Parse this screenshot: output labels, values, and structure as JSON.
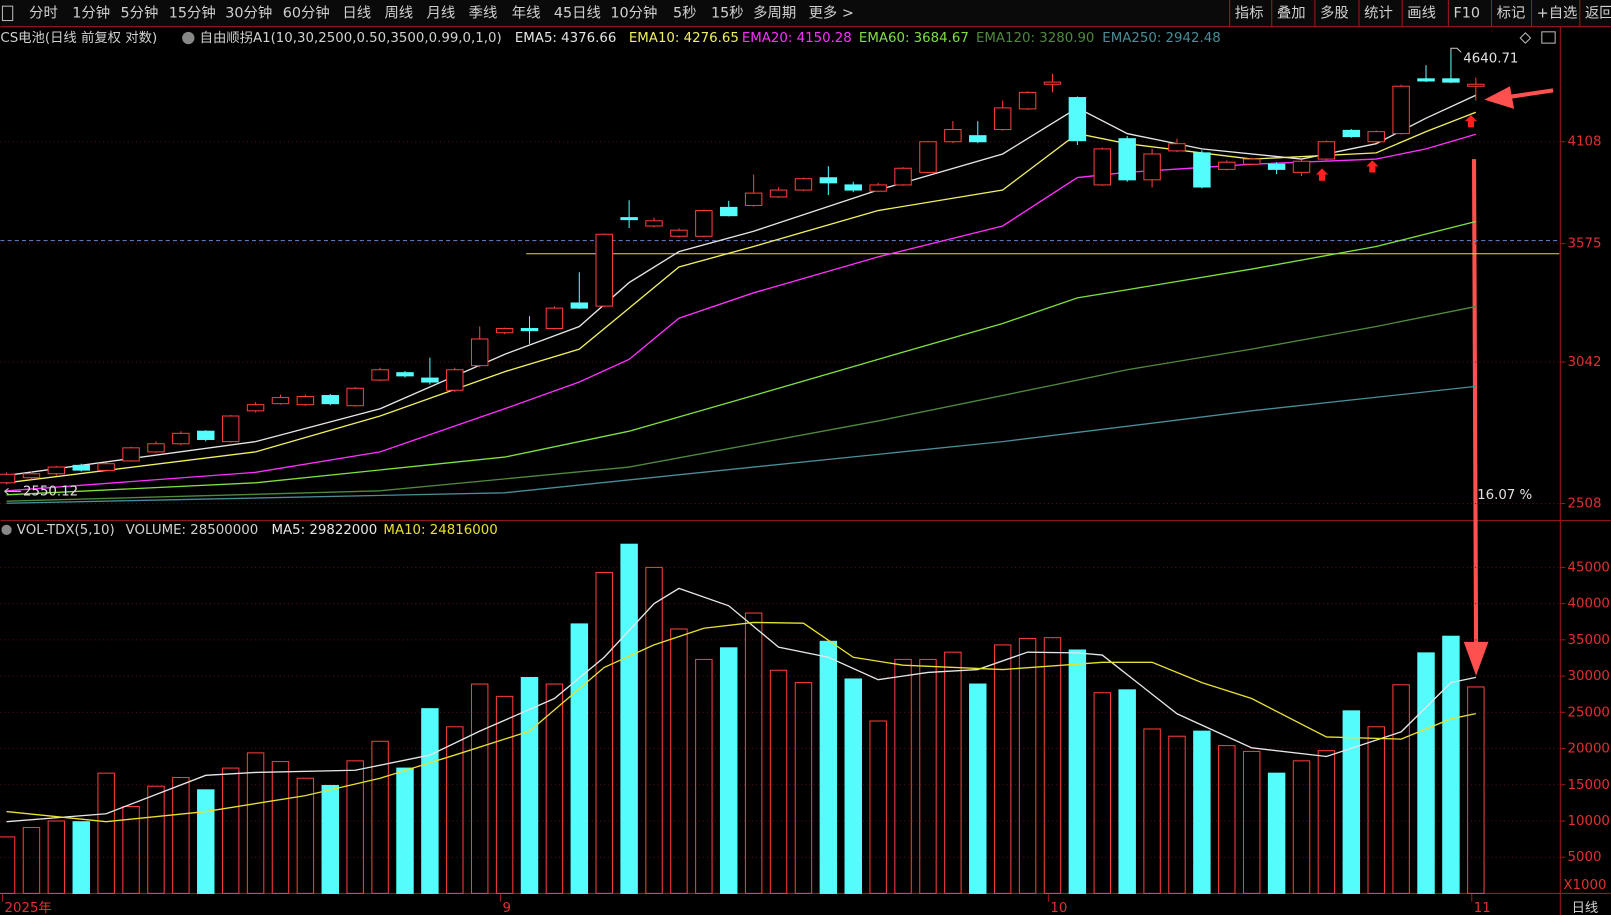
{
  "toolbar": {
    "tabs": [
      "分时",
      "1分钟",
      "5分钟",
      "15分钟",
      "30分钟",
      "60分钟",
      "日线",
      "周线",
      "月线",
      "季线",
      "年线",
      "45日线",
      "10分钟",
      "5秒",
      "15秒",
      "多周期",
      "更多 >"
    ],
    "active": 6,
    "tools": [
      "指标",
      "叠加",
      "多股",
      "统计",
      "画线",
      "F10",
      "标记",
      "+自选",
      "返回"
    ]
  },
  "chart_data": [
    {
      "type": "candlestick",
      "title": "CS电池(日线 前复权 对数)",
      "indicator": "自由顺拐A1(10,30,2500,0.50,3500,0.99,0,1,0)",
      "log_scale": true,
      "ylim": [
        2457,
        4673
      ],
      "yticks": [
        2508,
        3042,
        3575,
        4108
      ],
      "grid": true,
      "up_color": "#ff3c3c",
      "down_color": "#54fcfc",
      "open": [
        2580,
        2598,
        2612,
        2642,
        2624,
        2658,
        2691,
        2721,
        2768,
        2729,
        2846,
        2874,
        2870,
        2906,
        2866,
        2968,
        2998,
        2976,
        2927,
        3027,
        3166,
        3184,
        3184,
        3297,
        3283,
        3704,
        3662,
        3611,
        3611,
        3756,
        3766,
        3810,
        3846,
        3911,
        3873,
        3840,
        3873,
        3940,
        4108,
        4142,
        4177,
        4296,
        4443,
        4363,
        3873,
        4125,
        3900,
        4057,
        4046,
        3956,
        3984,
        3984,
        3940,
        4012,
        4172,
        4108,
        4154,
        4476,
        4476,
        4431
      ],
      "high": [
        2617,
        2620,
        2640,
        2648,
        2652,
        2710,
        2730,
        2768,
        2772,
        2830,
        2880,
        2910,
        2910,
        2912,
        2940,
        3018,
        3005,
        3060,
        3018,
        3193,
        3188,
        3238,
        3282,
        3438,
        3625,
        3793,
        3704,
        3650,
        3745,
        3790,
        3928,
        3860,
        3912,
        3973,
        3890,
        3884,
        3968,
        4112,
        4225,
        4225,
        4345,
        4400,
        4507,
        4370,
        4075,
        4140,
        4068,
        4125,
        4060,
        4005,
        4020,
        3995,
        4010,
        4115,
        4180,
        4172,
        4440,
        4560,
        4640.71,
        4483
      ],
      "low": [
        2575,
        2592,
        2605,
        2620,
        2620,
        2655,
        2688,
        2715,
        2730,
        2725,
        2840,
        2870,
        2865,
        2868,
        2862,
        2964,
        2978,
        2950,
        2920,
        3020,
        3160,
        3118,
        3180,
        3270,
        3278,
        3652,
        3655,
        3604,
        3606,
        3710,
        3760,
        3805,
        3840,
        3820,
        3835,
        3835,
        3868,
        3935,
        4100,
        4100,
        4170,
        4290,
        4394,
        4090,
        3868,
        3890,
        3860,
        4050,
        3855,
        3950,
        3980,
        3930,
        3920,
        4005,
        4130,
        4100,
        4148,
        4456,
        4450,
        4345
      ],
      "close": [
        2610,
        2612,
        2636,
        2625,
        2648,
        2706,
        2721,
        2760,
        2737,
        2826,
        2870,
        2898,
        2902,
        2874,
        2935,
        3010,
        2985,
        2960,
        3010,
        3139,
        3184,
        3175,
        3274,
        3274,
        3621,
        3694,
        3688,
        3641,
        3740,
        3714,
        3830,
        3846,
        3906,
        3884,
        3846,
        3873,
        3962,
        4108,
        4177,
        4108,
        4302,
        4394,
        4456,
        4114,
        4068,
        3900,
        4040,
        4097,
        3862,
        3995,
        4012,
        3956,
        4000,
        4108,
        4137,
        4165,
        4431,
        4463,
        4456,
        4443
      ],
      "high_marker_index": 58,
      "low_marker": 2550.12,
      "hline": 3526,
      "price_line": 3590,
      "annotation": "16.07 %",
      "x_labels": [
        {
          "index": 0,
          "label": "2025年"
        },
        {
          "index": 20,
          "label": "9"
        },
        {
          "index": 42,
          "label": "10"
        },
        {
          "index": 59,
          "label": "11"
        }
      ],
      "lines": [
        {
          "name": "EMA5: 4376.66",
          "color": "#e6e6e6",
          "x": [
            0,
            10,
            15,
            20,
            23,
            25,
            27,
            30,
            35,
            40,
            43,
            45,
            48,
            52,
            55,
            57,
            59
          ],
          "values": [
            2606,
            2729,
            2854,
            3074,
            3193,
            3390,
            3536,
            3636,
            3846,
            4040,
            4302,
            4154,
            4068,
            4012,
            4097,
            4242,
            4376.66
          ]
        },
        {
          "name": "EMA10: 4276.65",
          "color": "#f0f060",
          "x": [
            0,
            10,
            15,
            20,
            23,
            25,
            27,
            30,
            35,
            40,
            43,
            45,
            50,
            55,
            57,
            59
          ],
          "values": [
            2580,
            2691,
            2826,
            3002,
            3096,
            3274,
            3463,
            3561,
            3740,
            3846,
            4154,
            4097,
            4012,
            4046,
            4165,
            4276.65
          ]
        },
        {
          "name": "EMA20: 4150.28",
          "color": "#ff30ff",
          "x": [
            0,
            10,
            15,
            20,
            23,
            25,
            27,
            30,
            35,
            40,
            43,
            45,
            50,
            55,
            57,
            59
          ],
          "values": [
            2552,
            2617,
            2691,
            2854,
            2960,
            3053,
            3229,
            3343,
            3511,
            3662,
            3912,
            3940,
            3984,
            4012,
            4068,
            4150.28
          ]
        },
        {
          "name": "EMA60: 3684.67",
          "color": "#7ee040",
          "x": [
            0,
            10,
            20,
            25,
            30,
            35,
            40,
            43,
            45,
            50,
            55,
            59
          ],
          "values": [
            2538,
            2580,
            2672,
            2768,
            2906,
            3053,
            3206,
            3320,
            3357,
            3453,
            3561,
            3684.67
          ]
        },
        {
          "name": "EMA120: 3280.90",
          "color": "#4f8a3c",
          "x": [
            0,
            15,
            25,
            35,
            42,
            45,
            50,
            55,
            59
          ],
          "values": [
            2516,
            2552,
            2636,
            2807,
            2947,
            3010,
            3096,
            3193,
            3280.9
          ]
        },
        {
          "name": "EMA250: 2942.48",
          "color": "#4a8c98",
          "x": [
            0,
            20,
            30,
            40,
            50,
            59
          ],
          "values": [
            2509,
            2545,
            2636,
            2729,
            2846,
            2942.48
          ]
        }
      ]
    },
    {
      "type": "bar",
      "title": "VOL-TDX(5,10)",
      "legend": "VOLUME: 28500000",
      "unit": "X1000",
      "ylim": [
        0,
        48900
      ],
      "yticks": [
        5000,
        10000,
        15000,
        20000,
        25000,
        30000,
        35000,
        40000,
        45000
      ],
      "grid": true,
      "values": [
        7800,
        9100,
        10000,
        9900,
        16600,
        12000,
        14800,
        16000,
        14300,
        17300,
        19400,
        18200,
        15900,
        14900,
        18300,
        21000,
        17300,
        25500,
        23000,
        28900,
        27200,
        29800,
        28900,
        37200,
        44300,
        48200,
        45000,
        36500,
        32300,
        33900,
        38700,
        30800,
        29100,
        34800,
        29600,
        23800,
        32300,
        32300,
        33300,
        28900,
        34300,
        35200,
        35300,
        33600,
        27700,
        28100,
        22700,
        21700,
        22400,
        20400,
        19600,
        16600,
        18300,
        19700,
        25200,
        23000,
        28800,
        33200,
        35500,
        28500
      ],
      "lines": [
        {
          "name": "MA5: 29822000",
          "color": "#e6e6e6",
          "x": [
            0,
            4,
            8,
            10,
            14,
            17,
            19,
            22,
            24,
            26,
            27,
            29,
            31,
            33,
            35,
            37,
            39,
            41,
            43,
            44,
            47,
            50,
            53,
            56,
            58,
            59
          ],
          "values": [
            9900,
            11000,
            16300,
            16700,
            17000,
            19100,
            22400,
            26900,
            32600,
            40000,
            42100,
            39700,
            34000,
            32600,
            29500,
            30500,
            30900,
            33300,
            33200,
            32900,
            24800,
            20100,
            18900,
            22300,
            29100,
            29822
          ]
        },
        {
          "name": "MA10: 24816000",
          "color": "#e8e030",
          "x": [
            0,
            4,
            8,
            12,
            15,
            18,
            21,
            24,
            26,
            28,
            30,
            32,
            34,
            36,
            40,
            44,
            46,
            48,
            50,
            53,
            56,
            58,
            59
          ],
          "values": [
            11300,
            9900,
            11300,
            13500,
            15900,
            19100,
            22400,
            31200,
            34300,
            36600,
            37400,
            37300,
            32600,
            31500,
            30900,
            31900,
            31900,
            29100,
            26900,
            21600,
            21300,
            24100,
            24816
          ]
        }
      ]
    }
  ],
  "period_label": "日线"
}
